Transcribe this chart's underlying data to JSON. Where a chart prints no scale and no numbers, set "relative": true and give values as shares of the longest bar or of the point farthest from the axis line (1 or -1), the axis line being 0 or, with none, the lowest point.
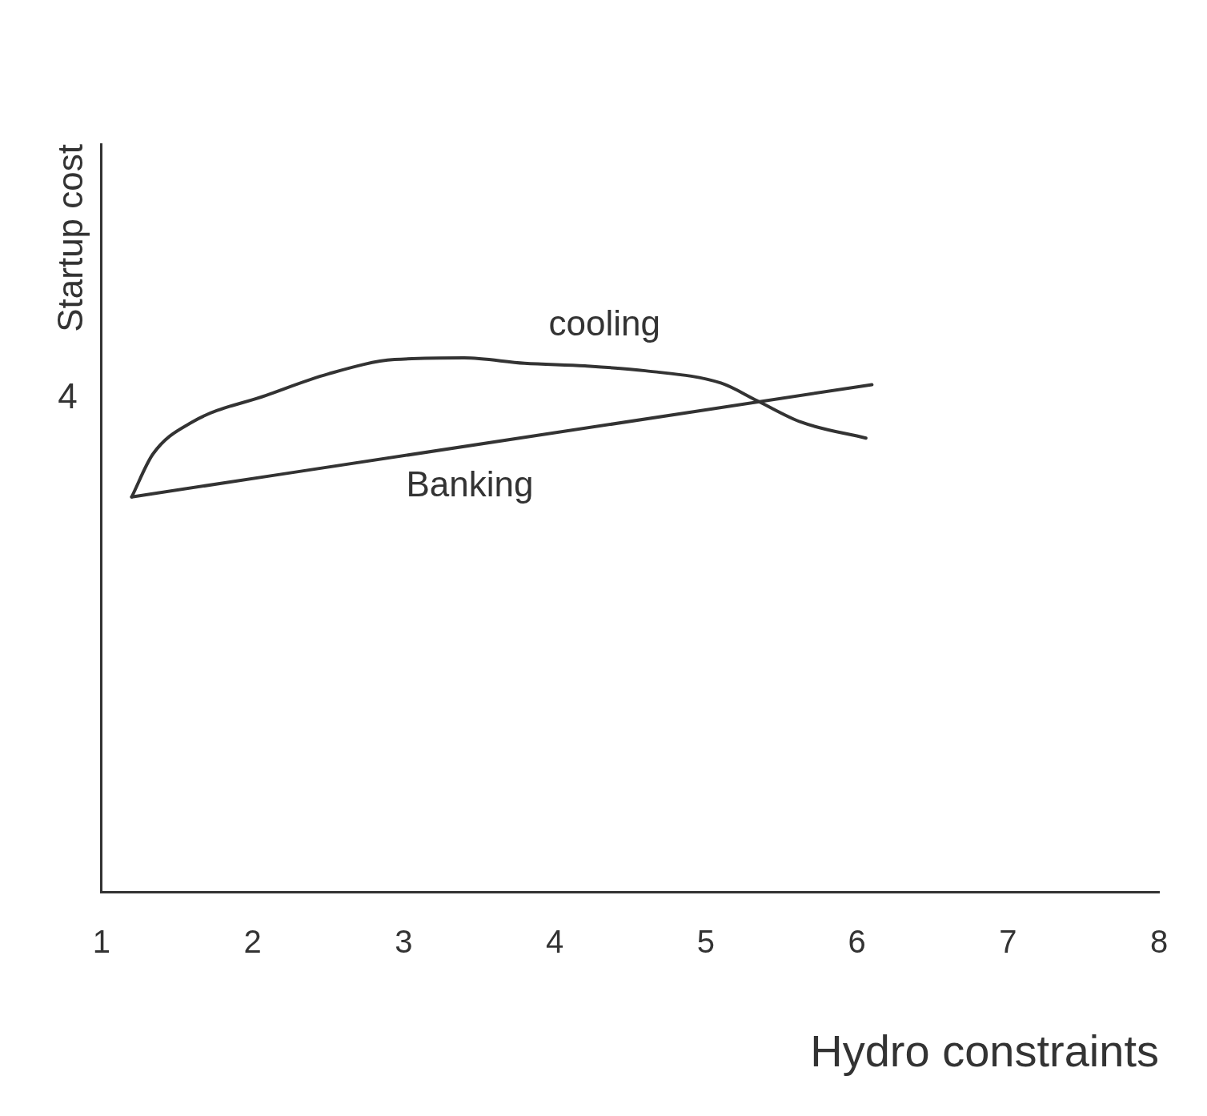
{
  "chart_data": {
    "type": "line",
    "xlabel": "Hydro constraints",
    "ylabel": "Startup cost",
    "relative": true,
    "xlim": [
      1,
      8
    ],
    "xticks": [
      1,
      2,
      3,
      4,
      5,
      6,
      7,
      8
    ],
    "grid": false,
    "legend": false,
    "marker": "none",
    "line_style": "solid",
    "annotations": [
      "4"
    ],
    "series": [
      {
        "name": "cooling",
        "color": "#333333",
        "x": [
          1.2,
          1.34,
          1.6,
          2.09,
          2.5,
          2.94,
          3.4,
          3.8,
          4.2,
          4.6,
          5.1,
          5.34,
          5.63,
          6.06
        ],
        "values": [
          0.74,
          0.82,
          0.88,
          0.93,
          0.97,
          0.997,
          1.0,
          0.99,
          0.985,
          0.976,
          0.953,
          0.92,
          0.88,
          0.85
        ]
      },
      {
        "name": "Banking",
        "color": "#333333",
        "x": [
          1.2,
          6.1
        ],
        "values": [
          0.74,
          0.95
        ]
      }
    ]
  }
}
